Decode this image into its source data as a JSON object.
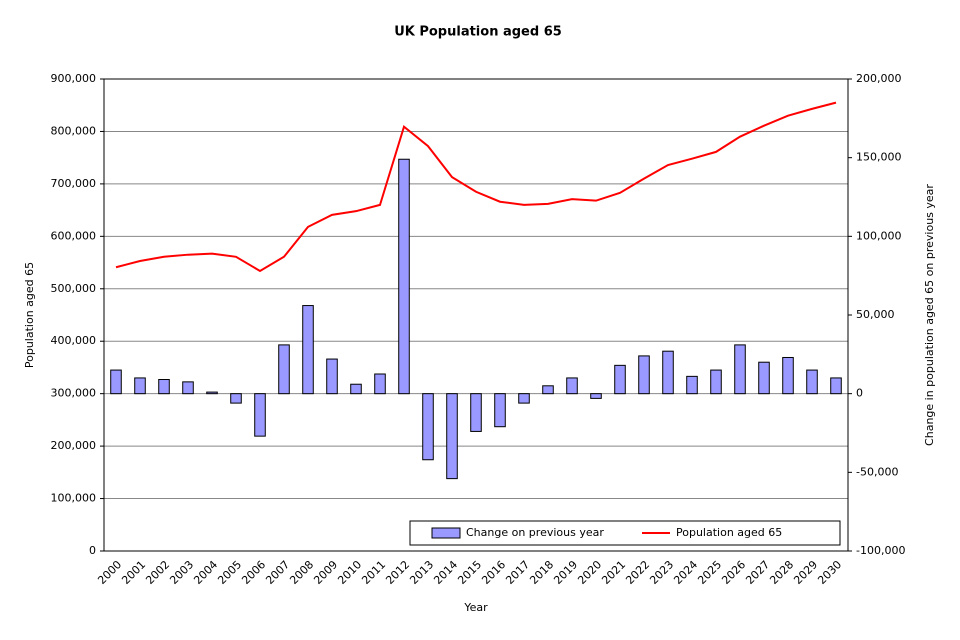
{
  "chart_data": {
    "type": "bar",
    "title": "UK Population aged 65",
    "x_label": "Year",
    "y_label": "Population aged 65",
    "y2_label": "Change in population aged 65 on previous year",
    "categories": [
      "2000",
      "2001",
      "2002",
      "2003",
      "2004",
      "2005",
      "2006",
      "2007",
      "2008",
      "2009",
      "2010",
      "2011",
      "2012",
      "2013",
      "2014",
      "2015",
      "2016",
      "2017",
      "2018",
      "2019",
      "2020",
      "2021",
      "2022",
      "2023",
      "2024",
      "2025",
      "2026",
      "2027",
      "2028",
      "2029",
      "2030"
    ],
    "series": [
      {
        "name": "Change on previous year",
        "type": "bar",
        "axis": "y2",
        "color": "#9999ff",
        "values": [
          15000,
          10000,
          9000,
          7500,
          1000,
          -6000,
          -27000,
          31000,
          56000,
          22000,
          6000,
          12500,
          149000,
          -42000,
          -54000,
          -24000,
          -21000,
          -6000,
          5000,
          10000,
          -3000,
          18000,
          24000,
          27000,
          11000,
          15000,
          31000,
          20000,
          23000,
          15000,
          10000
        ]
      },
      {
        "name": "Population aged 65",
        "type": "line",
        "color": "#ff0000",
        "values": [
          541000,
          553000,
          561000,
          565000,
          567000,
          561000,
          534000,
          561000,
          618000,
          641000,
          648000,
          660000,
          809000,
          772000,
          713000,
          685000,
          666000,
          660000,
          662000,
          671000,
          668000,
          683000,
          710000,
          736000,
          748000,
          761000,
          790000,
          811000,
          830000,
          843000,
          855000
        ]
      }
    ],
    "ylim": [
      0,
      900000
    ],
    "yticks": [
      0,
      {
        "value": 100000,
        "label": "100,000"
      },
      {
        "value": 200000,
        "label": "200,000"
      },
      {
        "value": 300000,
        "label": "300,000"
      },
      {
        "value": 400000,
        "label": "400,000"
      },
      {
        "value": 500000,
        "label": "500,000"
      },
      {
        "value": 600000,
        "label": "600,000"
      },
      {
        "value": 700000,
        "label": "700,000"
      },
      {
        "value": 800000,
        "label": "800,000"
      },
      {
        "value": 900000,
        "label": "900,000"
      }
    ],
    "y2lim": [
      -100000,
      200000
    ],
    "y2ticks": [
      {
        "value": -100000,
        "label": "-100,000"
      },
      {
        "value": -50000,
        "label": "-50,000"
      },
      0,
      {
        "value": 50000,
        "label": "50,000"
      },
      {
        "value": 100000,
        "label": "100,000"
      },
      {
        "value": 150000,
        "label": "150,000"
      },
      {
        "value": 200000,
        "label": "200,000"
      }
    ],
    "grid": true,
    "legend": "bottom-right"
  }
}
